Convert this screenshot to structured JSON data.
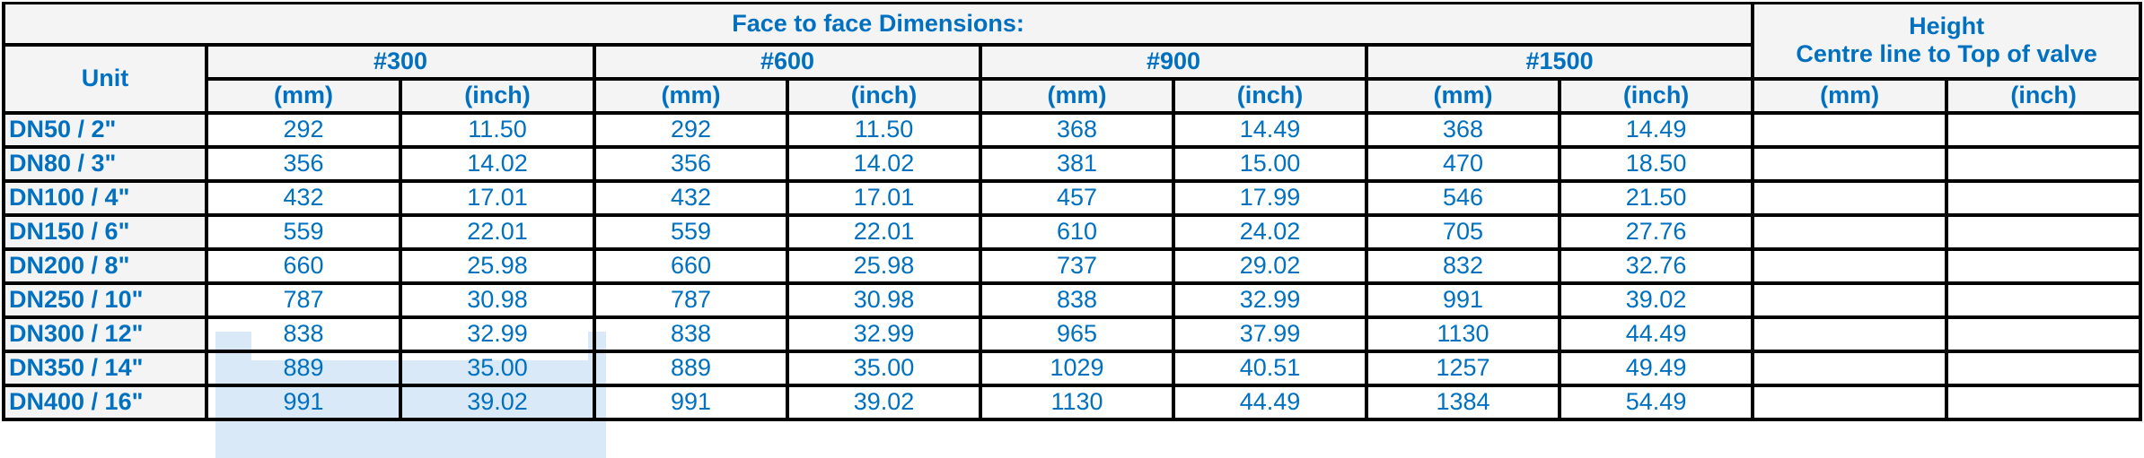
{
  "table": {
    "title": "Face to face Dimensions:",
    "unit_header": "Unit",
    "height_header_line1": "Height",
    "height_header_line2": "Centre line to Top of valve",
    "classes": [
      "#300",
      "#600",
      "#900",
      "#1500"
    ],
    "sub_headers": [
      "(mm)",
      "(inch)"
    ],
    "text_color": "#0070C0",
    "header_bg": "#f4f4f4",
    "rows": [
      {
        "unit": "DN50 / 2\"",
        "values": [
          "292",
          "11.50",
          "292",
          "11.50",
          "368",
          "14.49",
          "368",
          "14.49"
        ],
        "height": [
          "",
          ""
        ]
      },
      {
        "unit": "DN80 / 3\"",
        "values": [
          "356",
          "14.02",
          "356",
          "14.02",
          "381",
          "15.00",
          "470",
          "18.50"
        ],
        "height": [
          "",
          ""
        ]
      },
      {
        "unit": "DN100 / 4\"",
        "values": [
          "432",
          "17.01",
          "432",
          "17.01",
          "457",
          "17.99",
          "546",
          "21.50"
        ],
        "height": [
          "",
          ""
        ]
      },
      {
        "unit": "DN150 / 6\"",
        "values": [
          "559",
          "22.01",
          "559",
          "22.01",
          "610",
          "24.02",
          "705",
          "27.76"
        ],
        "height": [
          "",
          ""
        ]
      },
      {
        "unit": "DN200 / 8\"",
        "values": [
          "660",
          "25.98",
          "660",
          "25.98",
          "737",
          "29.02",
          "832",
          "32.76"
        ],
        "height": [
          "",
          ""
        ]
      },
      {
        "unit": "DN250 / 10\"",
        "values": [
          "787",
          "30.98",
          "787",
          "30.98",
          "838",
          "32.99",
          "991",
          "39.02"
        ],
        "height": [
          "",
          ""
        ]
      },
      {
        "unit": "DN300 / 12\"",
        "values": [
          "838",
          "32.99",
          "838",
          "32.99",
          "965",
          "37.99",
          "1130",
          "44.49"
        ],
        "height": [
          "",
          ""
        ]
      },
      {
        "unit": "DN350 / 14\"",
        "values": [
          "889",
          "35.00",
          "889",
          "35.00",
          "1029",
          "40.51",
          "1257",
          "49.49"
        ],
        "height": [
          "",
          ""
        ]
      },
      {
        "unit": "DN400 / 16\"",
        "values": [
          "991",
          "39.02",
          "991",
          "39.02",
          "1130",
          "44.49",
          "1384",
          "54.49"
        ],
        "height": [
          "",
          ""
        ]
      }
    ]
  }
}
